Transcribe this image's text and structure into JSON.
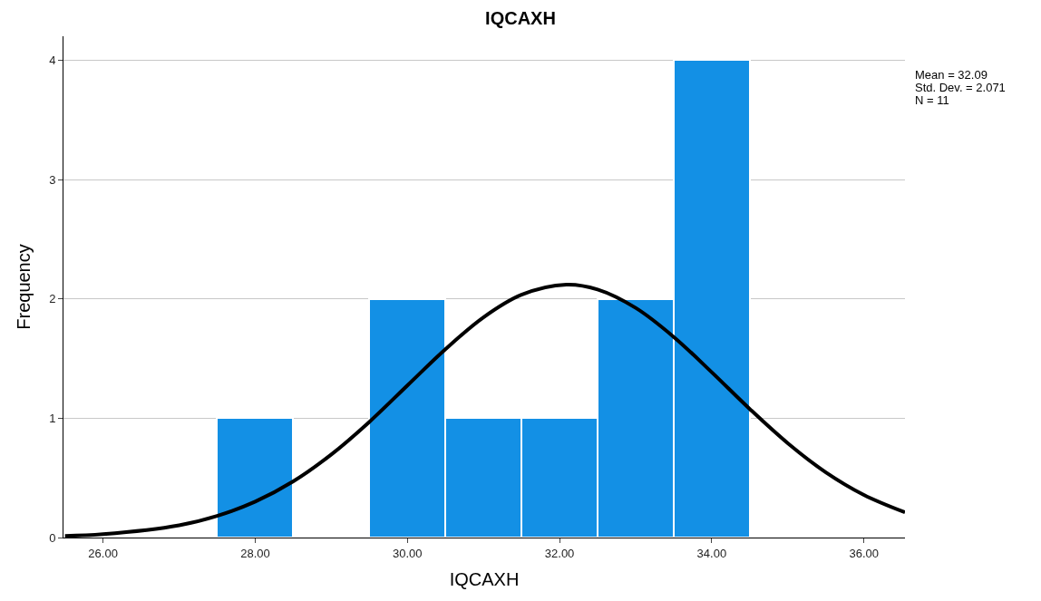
{
  "chart_data": {
    "type": "histogram",
    "title": "IQCAXH",
    "xlabel": "IQCAXH",
    "ylabel": "Frequency",
    "bins": [
      27.5,
      28.5,
      29.5,
      30.5,
      31.5,
      32.5,
      33.5,
      34.5
    ],
    "values": [
      1,
      0,
      2,
      1,
      1,
      2,
      4
    ],
    "color": "#1390e5",
    "series": [
      {
        "type": "line",
        "color": "#000000",
        "x": [
          25.5,
          26,
          27,
          27.5,
          28,
          28.5,
          29,
          29.5,
          30,
          30.5,
          31,
          31.5,
          32.09,
          32.5,
          33,
          33.5,
          34,
          34.5,
          35,
          35.5,
          36,
          36.54
        ],
        "values": [
          0.013,
          0.028,
          0.103,
          0.182,
          0.301,
          0.471,
          0.696,
          0.969,
          1.274,
          1.578,
          1.845,
          2.034,
          2.119,
          2.078,
          1.924,
          1.681,
          1.385,
          1.077,
          0.79,
          0.546,
          0.357,
          0.211
        ]
      }
    ],
    "xlim": [
      25.48,
      36.54
    ],
    "xticks": [
      {
        "value": 26,
        "label": "26.00"
      },
      {
        "value": 28,
        "label": "28.00"
      },
      {
        "value": 30,
        "label": "30.00"
      },
      {
        "value": 32,
        "label": "32.00"
      },
      {
        "value": 34,
        "label": "34.00"
      },
      {
        "value": 36,
        "label": "36.00"
      }
    ],
    "ylim": [
      0,
      4.2
    ],
    "yticks": [
      0,
      1,
      2,
      3,
      4
    ],
    "grid": "y",
    "line_style": "solid",
    "marker": "none",
    "annotations": [
      "Mean = 32.09",
      "Std. Dev. = 2.071",
      "N = 11"
    ]
  }
}
